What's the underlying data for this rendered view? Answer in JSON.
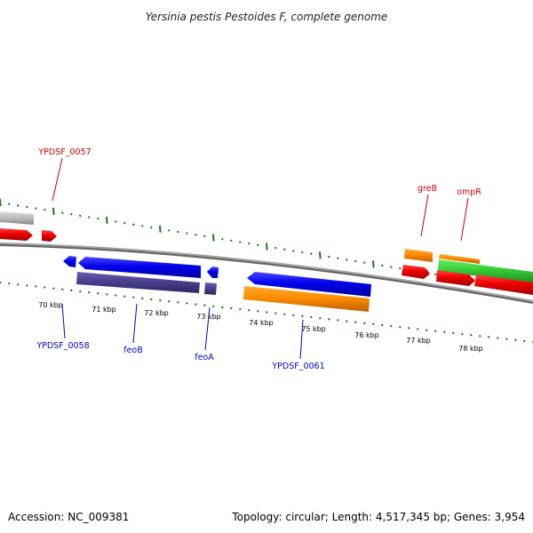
{
  "title": "Yersinia pestis Pestoides F, complete genome",
  "footer": {
    "accession": "Accession: NC_009381",
    "summary": "Topology: circular; Length: 4,517,345 bp; Genes: 3,954"
  },
  "kbp_ticks": [
    "70 kbp",
    "71 kbp",
    "72 kbp",
    "73 kbp",
    "74 kbp",
    "75 kbp",
    "76 kbp",
    "77 kbp",
    "78 kbp"
  ],
  "gene_labels": {
    "YPDSF_0057": "YPDSF_0057",
    "YPDSF_0058": "YPDSF_0058",
    "feoB": "feoB",
    "feoA": "feoA",
    "YPDSF_0061": "YPDSF_0061",
    "greB": "greB",
    "ompR": "ompR"
  },
  "colors": {
    "forward_label": "#cc0000",
    "reverse_label": "#0000cc",
    "cds_red": "#ee0000",
    "cds_blue": "#0000ee",
    "cds_purple": "#4a3f8f",
    "cds_orange": "#ff8c00",
    "cds_green": "#33cc33",
    "cds_grey": "#bbbbbb",
    "tick_green": "#1a7a1a",
    "backbone": "#888888"
  }
}
